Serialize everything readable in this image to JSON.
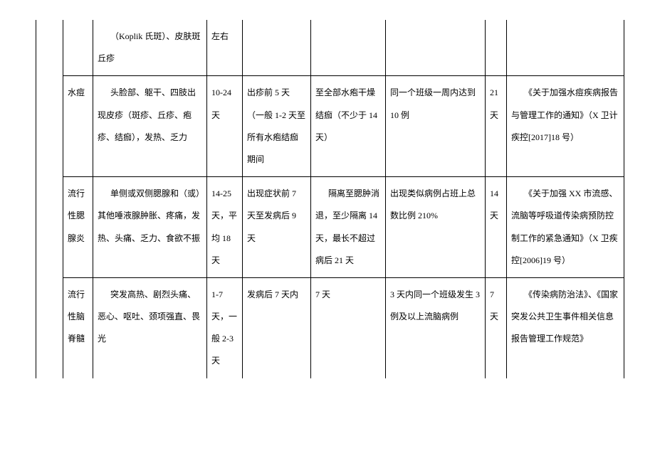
{
  "table": {
    "rows": [
      {
        "c0": "",
        "c1": "",
        "c2": "（Koplik 氏斑）、皮肤斑丘疹",
        "c3": "左右",
        "c4": "",
        "c5": "",
        "c6": "",
        "c7": "",
        "c8": ""
      },
      {
        "c0": "",
        "c1": "水痘",
        "c2": "头脸部、躯干、四肢出现皮疹（斑疹、丘疹、疱疹、结痂），发热、乏力",
        "c3": "10-24 天",
        "c4": "出疹前 5 天（一般 1-2 天至所有水疱结痂期间",
        "c5": "至全部水疱干燥结痂（不少于 14 天）",
        "c6": "同一个班级一周内达到 10 例",
        "c7": "21 天",
        "c8": "《关于加强水痘疾病报告与管理工作的通知》（X 卫计疾控[2017]18 号）"
      },
      {
        "c0": "",
        "c1": "流行性腮腺炎",
        "c2": "单侧或双侧腮腺和（或）其他唾液腺肿胀、疼痛，发热、头痛、乏力、食欲不振",
        "c3": "14-25 天，平均 18 天",
        "c4": "出现症状前 7 天至发病后 9 天",
        "c5": "隔离至腮肿消退，至少隔离 14 天，最长不超过病后 21 天",
        "c6": "出现类似病例占班上总数比例 210%",
        "c7": "14 天",
        "c8": "《关于加强 XX 市流感、流脑等呼吸道传染病预防控制工作的紧急通知》（X 卫疾控[2006]19 号）"
      },
      {
        "c0": "",
        "c1": "流行性脑脊髓",
        "c2": "突发高热、剧烈头痛、恶心、呕吐、颈项强直、畏光",
        "c3": "1-7 天，一般 2-3 天",
        "c4": "发病后 7 天内",
        "c5": "7 天",
        "c6": "3 天内同一个班级发生 3 例及以上流脑病例",
        "c7": "7 天",
        "c8": "《传染病防治法》、《国家突发公共卫生事件相关信息报告管理工作规范》"
      }
    ]
  }
}
